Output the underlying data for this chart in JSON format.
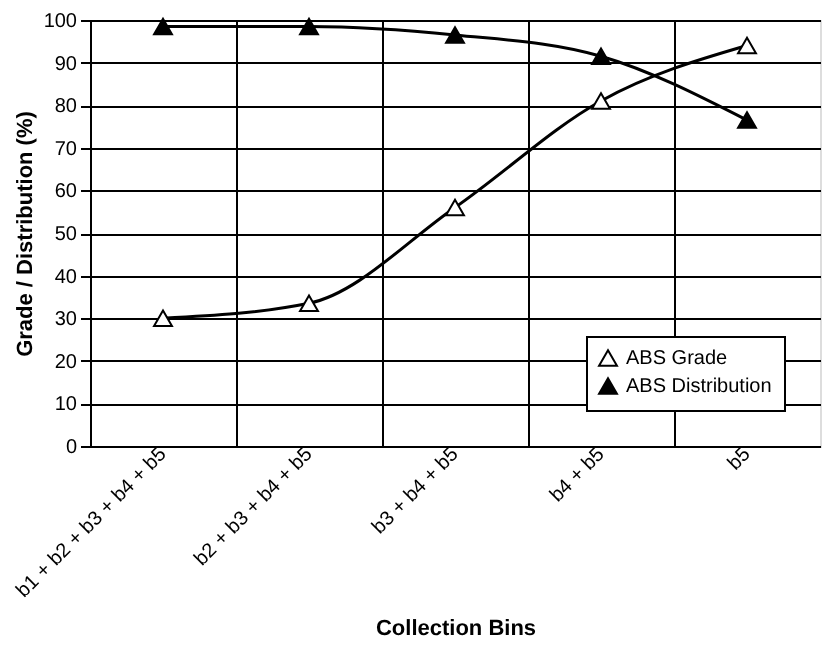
{
  "chart_data": {
    "type": "line",
    "xlabel": "Collection Bins",
    "ylabel": "Grade / Distribution (%)",
    "categories": [
      "b1 + b2 + b3 + b4 + b5",
      "b2 + b3 + b4 + b5",
      "b3 + b4 + b5",
      "b4 + b5",
      "b5"
    ],
    "series": [
      {
        "name": "ABS Grade",
        "color": "#000000",
        "values": [
          30,
          33.5,
          56,
          81,
          94
        ]
      },
      {
        "name": "ABS Distribution",
        "color": "#000000",
        "values": [
          98.5,
          98.5,
          96.5,
          91.5,
          76.5
        ]
      }
    ],
    "ylim": [
      0,
      100
    ],
    "yticks": [
      0,
      10,
      20,
      30,
      40,
      50,
      60,
      70,
      80,
      90,
      100
    ],
    "grid": true,
    "legend": "bottom right",
    "marker": "triangle",
    "line_style": "solid"
  }
}
